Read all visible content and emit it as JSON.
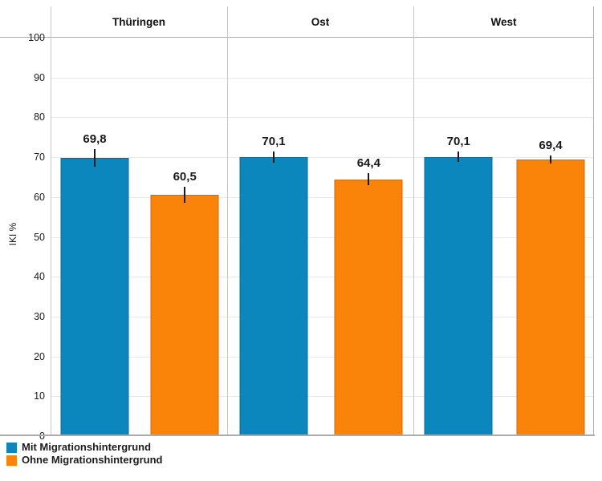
{
  "chart_data": {
    "type": "bar",
    "title": "",
    "categories": [
      "Thüringen",
      "Ost",
      "West"
    ],
    "series": [
      {
        "name": "Mit Migrationshintergrund",
        "color": "#0b87be",
        "values": [
          69.8,
          70.1,
          70.1
        ],
        "value_labels": [
          "69,8",
          "70,1",
          "70,1"
        ],
        "errors": [
          2.2,
          1.4,
          1.3
        ]
      },
      {
        "name": "Ohne Migrationshintergrund",
        "color": "#fa8309",
        "values": [
          60.5,
          64.4,
          69.4
        ],
        "value_labels": [
          "60,5",
          "64,4",
          "69,4"
        ],
        "errors": [
          2.0,
          1.5,
          1.0
        ]
      }
    ],
    "xlabel": "",
    "ylabel": "IKI %",
    "ylim": [
      0,
      100
    ],
    "yticks": [
      0,
      10,
      20,
      30,
      40,
      50,
      60,
      70,
      80,
      90,
      100
    ],
    "grid": true,
    "error_bar_color": "#1a1a1a",
    "legend_position": "bottom-left"
  }
}
